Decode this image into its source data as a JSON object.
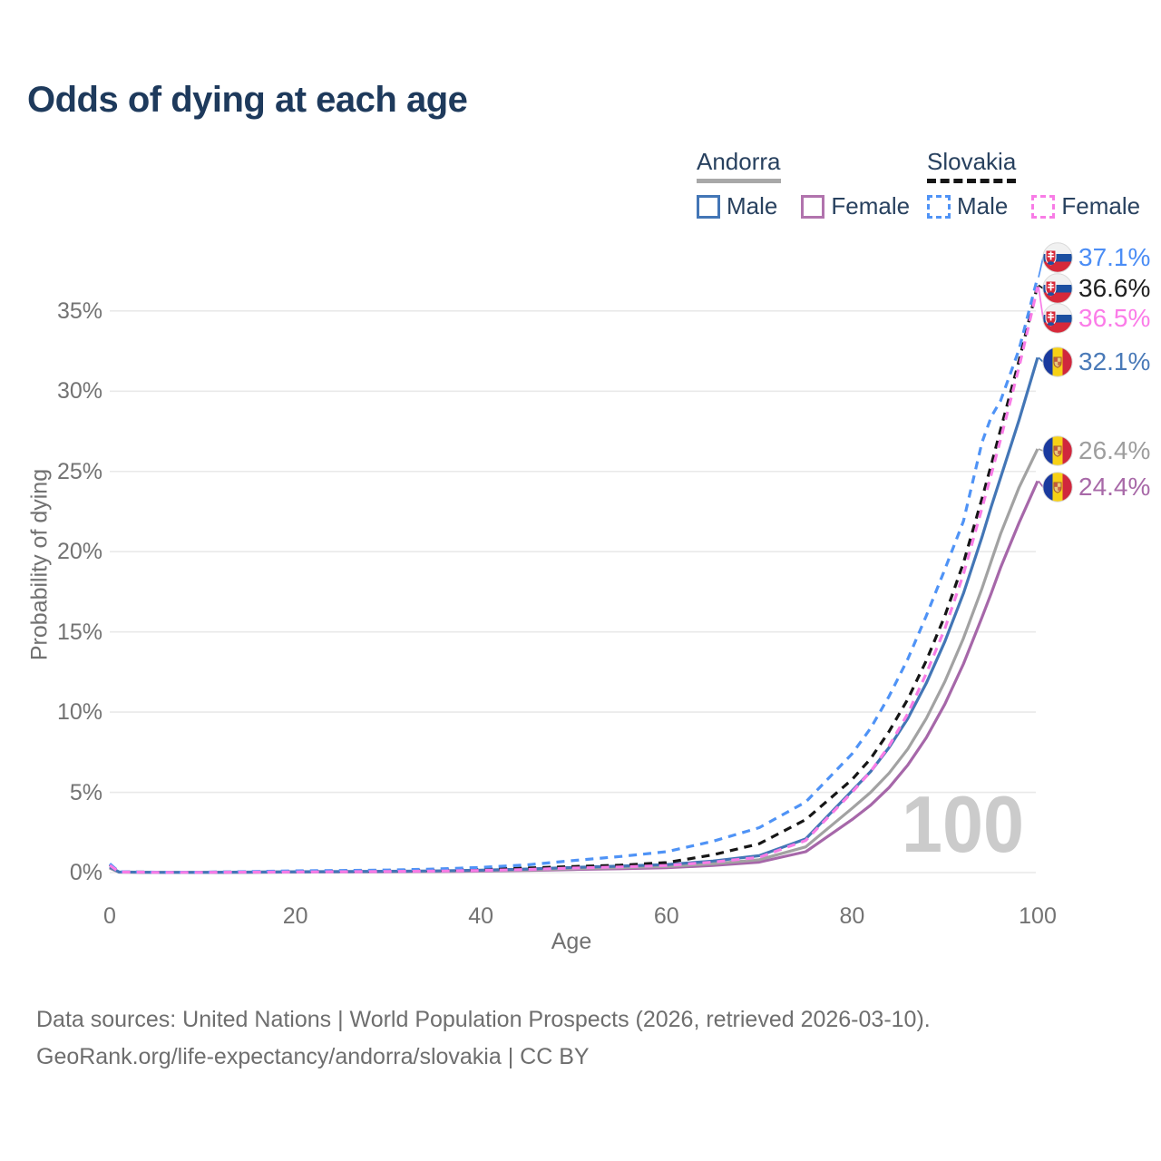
{
  "title": "Odds of dying at each age",
  "watermark": "100",
  "legend": {
    "groups": [
      {
        "name": "Andorra",
        "line_style": "solid",
        "line_color": "#a8a8a8",
        "items": [
          {
            "label": "Male",
            "color": "#4376b6",
            "dashed": false
          },
          {
            "label": "Female",
            "color": "#b173ad",
            "dashed": false
          }
        ]
      },
      {
        "name": "Slovakia",
        "line_style": "dashed",
        "line_color": "#161616",
        "items": [
          {
            "label": "Male",
            "color": "#4f93f6",
            "dashed": true
          },
          {
            "label": "Female",
            "color": "#f87ce6",
            "dashed": true
          }
        ]
      }
    ]
  },
  "footer": {
    "line1": "Data sources: United Nations | World Population Prospects (2026, retrieved 2026-03-10).",
    "line2": "GeoRank.org/life-expectancy/andorra/slovakia | CC BY"
  },
  "chart_data": {
    "type": "line",
    "title": "Odds of dying at each age",
    "xlabel": "Age",
    "ylabel": "Probability of dying",
    "xlim": [
      0,
      100
    ],
    "ylim_pct": [
      0,
      38
    ],
    "grid": "horizontal",
    "legend_position": "top-right",
    "x_tick_values": [
      0,
      20,
      40,
      60,
      80,
      100
    ],
    "x_tick_labels": [
      "0",
      "20",
      "40",
      "60",
      "80",
      "100"
    ],
    "y_tick_values_pct": [
      0,
      5,
      10,
      15,
      20,
      25,
      30,
      35
    ],
    "y_tick_labels": [
      "0%",
      "5%",
      "10%",
      "15%",
      "20%",
      "25%",
      "30%",
      "35%"
    ],
    "ages": [
      0,
      1,
      5,
      10,
      15,
      20,
      25,
      30,
      35,
      40,
      45,
      50,
      55,
      60,
      65,
      70,
      75,
      80,
      82,
      84,
      86,
      88,
      90,
      92,
      94,
      95,
      96,
      98,
      100
    ],
    "series": [
      {
        "name": "Slovakia male",
        "country": "Slovakia",
        "sex": "male",
        "style": "dashed",
        "color": "#4f93f6",
        "label_color": "#4b8df5",
        "end_label": "37.1%",
        "flag": "slovakia",
        "values_pct": [
          0.55,
          0.05,
          0.02,
          0.02,
          0.06,
          0.11,
          0.13,
          0.16,
          0.22,
          0.32,
          0.48,
          0.75,
          1.0,
          1.3,
          1.95,
          2.8,
          4.4,
          7.4,
          9.0,
          11.0,
          13.3,
          16.0,
          18.9,
          21.9,
          26.8,
          28.4,
          29.4,
          32.6,
          37.1
        ]
      },
      {
        "name": "Slovakia both sexes",
        "country": "Slovakia",
        "sex": "both",
        "style": "dashed",
        "color": "#161616",
        "label_color": "#1f1f1f",
        "end_label": "36.6%",
        "flag": "slovakia",
        "values_pct": [
          0.5,
          0.04,
          0.02,
          0.02,
          0.04,
          0.07,
          0.09,
          0.11,
          0.14,
          0.2,
          0.28,
          0.38,
          0.46,
          0.62,
          1.1,
          1.8,
          3.3,
          5.8,
          7.1,
          8.8,
          10.8,
          13.2,
          16.0,
          19.3,
          23.3,
          25.4,
          27.6,
          31.9,
          36.6
        ]
      },
      {
        "name": "Slovakia female",
        "country": "Slovakia",
        "sex": "female",
        "style": "dashed",
        "color": "#f87ce6",
        "label_color": "#fb7ce8",
        "end_label": "36.5%",
        "flag": "slovakia",
        "values_pct": [
          0.45,
          0.04,
          0.01,
          0.01,
          0.03,
          0.04,
          0.05,
          0.07,
          0.09,
          0.13,
          0.19,
          0.28,
          0.35,
          0.44,
          0.65,
          0.95,
          2.0,
          5.0,
          6.3,
          7.9,
          9.9,
          12.4,
          15.2,
          18.6,
          22.7,
          24.8,
          27.0,
          31.5,
          36.5
        ]
      },
      {
        "name": "Andorra male",
        "country": "Andorra",
        "sex": "male",
        "style": "solid",
        "color": "#4376b6",
        "label_color": "#4a7ab8",
        "end_label": "32.1%",
        "flag": "andorra",
        "values_pct": [
          0.35,
          0.04,
          0.01,
          0.01,
          0.03,
          0.05,
          0.06,
          0.08,
          0.1,
          0.15,
          0.22,
          0.32,
          0.4,
          0.5,
          0.72,
          1.05,
          2.1,
          5.1,
          6.3,
          7.8,
          9.6,
          11.8,
          14.4,
          17.4,
          20.9,
          22.8,
          24.6,
          28.2,
          32.1
        ]
      },
      {
        "name": "Andorra both sexes",
        "country": "Andorra",
        "sex": "both",
        "style": "solid",
        "color": "#a2a2a2",
        "label_color": "#9e9e9e",
        "end_label": "26.4%",
        "flag": "andorra",
        "values_pct": [
          0.3,
          0.03,
          0.01,
          0.01,
          0.02,
          0.04,
          0.05,
          0.06,
          0.08,
          0.12,
          0.17,
          0.25,
          0.31,
          0.38,
          0.55,
          0.8,
          1.6,
          4.0,
          5.0,
          6.2,
          7.7,
          9.6,
          11.9,
          14.6,
          17.7,
          19.4,
          21.1,
          24.0,
          26.4
        ]
      },
      {
        "name": "Andorra female",
        "country": "Andorra",
        "sex": "female",
        "style": "solid",
        "color": "#a667a9",
        "label_color": "#a869a8",
        "end_label": "24.4%",
        "flag": "andorra",
        "values_pct": [
          0.28,
          0.03,
          0.01,
          0.01,
          0.02,
          0.03,
          0.04,
          0.05,
          0.06,
          0.09,
          0.13,
          0.19,
          0.24,
          0.3,
          0.44,
          0.65,
          1.3,
          3.3,
          4.2,
          5.3,
          6.7,
          8.4,
          10.5,
          13.0,
          15.9,
          17.4,
          19.0,
          21.8,
          24.4
        ]
      }
    ]
  }
}
